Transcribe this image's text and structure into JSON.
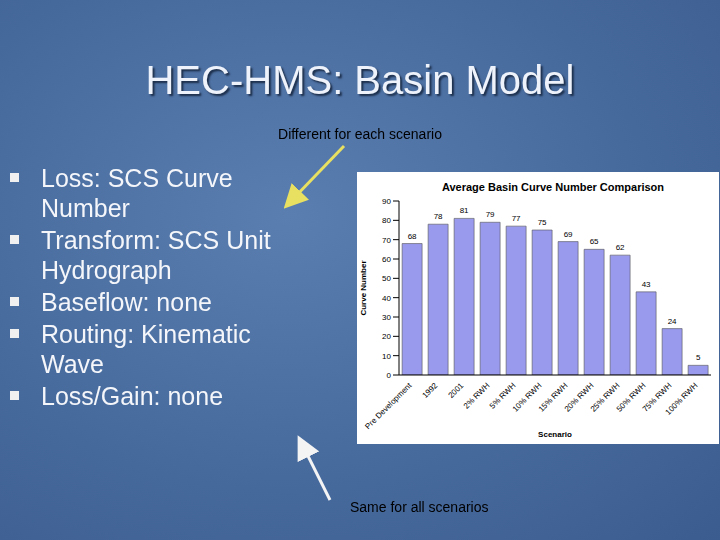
{
  "title": "HEC-HMS: Basin Model",
  "annotations": {
    "top": "Different for each scenario",
    "bottom": "Same for all scenarios"
  },
  "bullets": [
    "Loss: SCS Curve Number",
    "Transform: SCS Unit Hydrograph",
    "Baseflow: none",
    "Routing: Kinematic Wave",
    "Loss/Gain: none"
  ],
  "chart_data": {
    "type": "bar",
    "title": "Average Basin Curve Number Comparison",
    "x_label": "Scenario",
    "y_label": "Curve Number",
    "categories": [
      "Pre Development",
      "1992",
      "2001",
      "2% RWH",
      "5% RWH",
      "10% RWH",
      "15% RWH",
      "20% RWH",
      "25% RWH",
      "50% RWH",
      "75% RWH",
      "100% RWH"
    ],
    "values": [
      68,
      78,
      81,
      79,
      77,
      75,
      69,
      65,
      62,
      43,
      24,
      5
    ],
    "color": "#9999ee",
    "ylim": [
      0,
      90
    ],
    "yticks": [
      0,
      10,
      20,
      30,
      40,
      50,
      60,
      70,
      80,
      90
    ],
    "grid": false,
    "data_labels": true
  }
}
